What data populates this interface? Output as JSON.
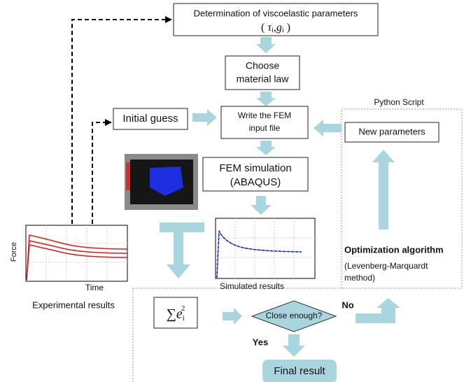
{
  "top_box": {
    "title": "Determination of viscoelastic parameters",
    "open": "(",
    "tau": "τ",
    "tau_sub": "i",
    "comma": ",",
    "g": "g",
    "g_sub": "i",
    "close": ")"
  },
  "material_box": {
    "lines": [
      "Choose",
      "material law"
    ]
  },
  "initial_guess": "Initial guess",
  "write_box": {
    "lines": [
      "Write the FEM",
      "input file"
    ]
  },
  "python_label": "Python Script",
  "new_parameters": "New parameters",
  "fem_box": {
    "lines": [
      "FEM simulation",
      "(ABAQUS)"
    ]
  },
  "experimental": {
    "y_label": "Force",
    "x_label": "Time",
    "caption": "Experimental results"
  },
  "simulated_caption": "Simulated results",
  "optimization": {
    "title": "Optimization algorithm",
    "lines": [
      "(Levenberg-Marquardt",
      "method)"
    ]
  },
  "error_sum": {
    "sigma": "∑",
    "e": "e",
    "sub": "i",
    "sup": "2"
  },
  "decision": "Close enough?",
  "no": "No",
  "yes": "Yes",
  "final": "Final result"
}
